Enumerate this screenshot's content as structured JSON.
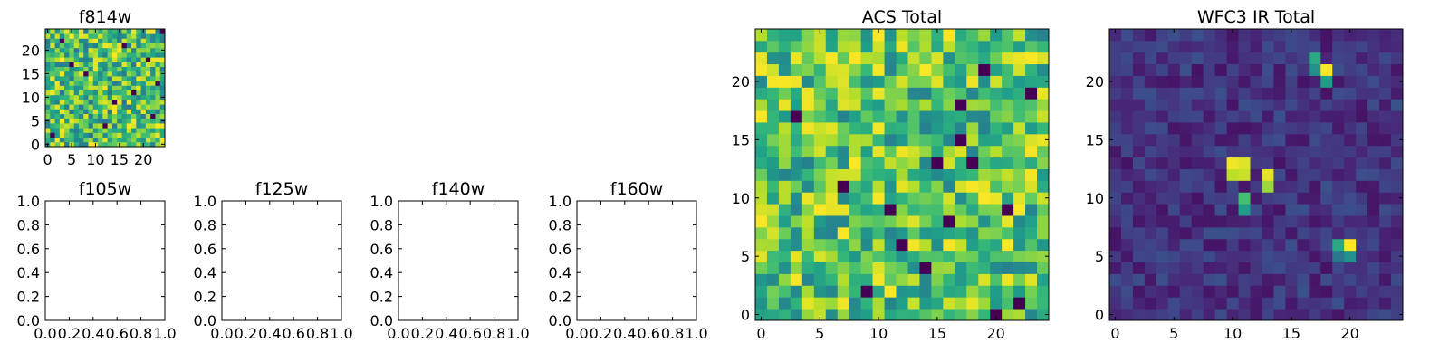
{
  "figure": {
    "background": "#ffffff"
  },
  "colormap": {
    "name": "viridis",
    "stops": [
      "#440154",
      "#482878",
      "#3e4989",
      "#31688e",
      "#26828e",
      "#1f9e89",
      "#35b779",
      "#6ece58",
      "#b5de2b",
      "#fde725"
    ]
  },
  "chart_data": [
    {
      "id": "f814w",
      "type": "heatmap",
      "title": "f814w",
      "rows": 25,
      "cols": 25,
      "xlim": [
        -0.5,
        24.5
      ],
      "ylim": [
        -0.5,
        24.5
      ],
      "xticks": [
        0,
        5,
        10,
        15,
        20
      ],
      "yticks": [
        0,
        5,
        10,
        15,
        20
      ],
      "value_range": [
        0,
        1
      ],
      "seed": 7,
      "noise_mean": 0.7,
      "noise_spread": 0.3,
      "dark_pixels": [
        [
          3,
          22
        ],
        [
          5,
          17
        ],
        [
          8,
          15
        ],
        [
          12,
          4
        ],
        [
          14,
          9
        ],
        [
          18,
          11
        ],
        [
          21,
          18
        ],
        [
          22,
          6
        ],
        [
          24,
          24
        ],
        [
          1,
          2
        ],
        [
          16,
          21
        ],
        [
          23,
          13
        ]
      ],
      "peaks": []
    },
    {
      "id": "f105w",
      "type": "empty",
      "title": "f105w",
      "xlim": [
        0,
        1
      ],
      "ylim": [
        0,
        1
      ],
      "xticks": [
        "0.0",
        "0.2",
        "0.4",
        "0.6",
        "0.8",
        "1.0"
      ],
      "yticks": [
        "0.0",
        "0.2",
        "0.4",
        "0.6",
        "0.8",
        "1.0"
      ]
    },
    {
      "id": "f125w",
      "type": "empty",
      "title": "f125w",
      "xlim": [
        0,
        1
      ],
      "ylim": [
        0,
        1
      ],
      "xticks": [
        "0.0",
        "0.2",
        "0.4",
        "0.6",
        "0.8",
        "1.0"
      ],
      "yticks": [
        "0.0",
        "0.2",
        "0.4",
        "0.6",
        "0.8",
        "1.0"
      ]
    },
    {
      "id": "f140w",
      "type": "empty",
      "title": "f140w",
      "xlim": [
        0,
        1
      ],
      "ylim": [
        0,
        1
      ],
      "xticks": [
        "0.0",
        "0.2",
        "0.4",
        "0.6",
        "0.8",
        "1.0"
      ],
      "yticks": [
        "0.0",
        "0.2",
        "0.4",
        "0.6",
        "0.8",
        "1.0"
      ]
    },
    {
      "id": "f160w",
      "type": "empty",
      "title": "f160w",
      "xlim": [
        0,
        1
      ],
      "ylim": [
        0,
        1
      ],
      "xticks": [
        "0.0",
        "0.2",
        "0.4",
        "0.6",
        "0.8",
        "1.0"
      ],
      "yticks": [
        "0.0",
        "0.2",
        "0.4",
        "0.6",
        "0.8",
        "1.0"
      ]
    },
    {
      "id": "acs-total",
      "type": "heatmap",
      "title": "ACS Total",
      "rows": 25,
      "cols": 25,
      "xlim": [
        -0.5,
        24.5
      ],
      "ylim": [
        -0.5,
        24.5
      ],
      "xticks": [
        0,
        5,
        10,
        15,
        20
      ],
      "yticks": [
        0,
        5,
        10,
        15,
        20
      ],
      "value_range": [
        0,
        1
      ],
      "seed": 11,
      "noise_mean": 0.72,
      "noise_spread": 0.28,
      "dark_pixels": [
        [
          3,
          17
        ],
        [
          17,
          18
        ],
        [
          17,
          15
        ],
        [
          14,
          4
        ],
        [
          16,
          8
        ],
        [
          19,
          21
        ],
        [
          21,
          9
        ],
        [
          20,
          0
        ],
        [
          22,
          1
        ],
        [
          7,
          11
        ],
        [
          18,
          13
        ],
        [
          11,
          9
        ],
        [
          12,
          6
        ],
        [
          9,
          2
        ],
        [
          23,
          19
        ],
        [
          15,
          13
        ]
      ],
      "peaks": []
    },
    {
      "id": "wfc3-ir-total",
      "type": "heatmap",
      "title": "WFC3 IR Total",
      "rows": 25,
      "cols": 25,
      "xlim": [
        -0.5,
        24.5
      ],
      "ylim": [
        -0.5,
        24.5
      ],
      "xticks": [
        0,
        5,
        10,
        15,
        20
      ],
      "yticks": [
        0,
        5,
        10,
        15,
        20
      ],
      "value_range": [
        0,
        1
      ],
      "seed": 23,
      "noise_mean": 0.15,
      "noise_spread": 0.1,
      "dark_pixels": [],
      "peaks": [
        [
          10,
          13,
          0.98
        ],
        [
          11,
          13,
          0.95
        ],
        [
          10,
          12,
          0.9
        ],
        [
          11,
          12,
          0.92
        ],
        [
          13,
          12,
          0.96
        ],
        [
          13,
          11,
          0.85
        ],
        [
          11,
          10,
          0.7
        ],
        [
          11,
          9,
          0.55
        ],
        [
          18,
          21,
          1.0
        ],
        [
          17,
          22,
          0.6
        ],
        [
          17,
          21,
          0.5
        ],
        [
          18,
          20,
          0.55
        ],
        [
          20,
          6,
          1.0
        ],
        [
          19,
          6,
          0.6
        ],
        [
          20,
          5,
          0.5
        ],
        [
          19,
          5,
          0.4
        ]
      ]
    }
  ]
}
